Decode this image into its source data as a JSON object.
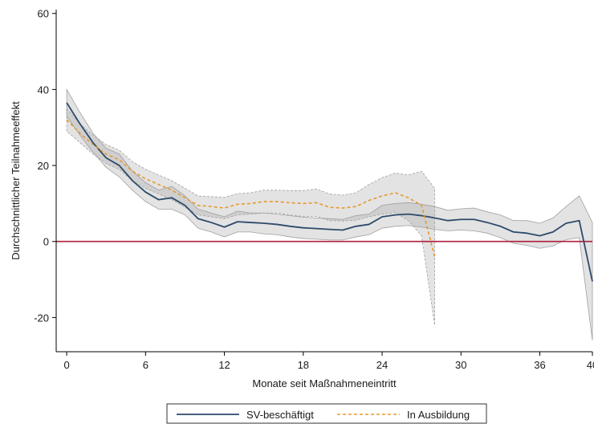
{
  "chart_data": {
    "type": "line",
    "xlabel": "Monate seit Maßnahmeneintritt",
    "ylabel": "Durchschnittlicher Teilnahmeeffekt",
    "xlim": [
      -0.8,
      40
    ],
    "ylim": [
      -29,
      61
    ],
    "xticks": [
      0,
      6,
      12,
      18,
      24,
      30,
      36,
      40
    ],
    "yticks": [
      -20,
      0,
      20,
      40,
      60
    ],
    "reference_line": {
      "y": 0,
      "color": "#b01c3c"
    },
    "grid": false,
    "legend_position": "bottom",
    "series": [
      {
        "name": "SV-beschäftigt",
        "color": "#2e4a6b",
        "style": "solid",
        "x": [
          0,
          1,
          2,
          3,
          4,
          5,
          6,
          7,
          8,
          9,
          10,
          11,
          12,
          13,
          14,
          15,
          16,
          17,
          18,
          19,
          20,
          21,
          22,
          23,
          24,
          25,
          26,
          27,
          28,
          29,
          30,
          31,
          32,
          33,
          34,
          35,
          36,
          37,
          38,
          39,
          40
        ],
        "y": [
          36.5,
          31,
          26,
          22,
          20,
          16,
          13,
          11,
          11.5,
          9.5,
          6,
          5,
          3.8,
          5.2,
          5,
          4.8,
          4.5,
          4,
          3.6,
          3.4,
          3.2,
          3,
          4,
          4.5,
          6.5,
          7,
          7.2,
          6.8,
          6.2,
          5.5,
          5.8,
          5.8,
          5,
          4,
          2.5,
          2.2,
          1.5,
          2.5,
          4.8,
          5.5,
          -10.5
        ],
        "ci_lower": [
          33,
          28,
          23.5,
          19.5,
          17,
          13.5,
          10.5,
          8.5,
          8.5,
          7,
          3.5,
          2.5,
          1.2,
          2.5,
          2.5,
          2,
          1.8,
          1.2,
          0.8,
          0.6,
          0.4,
          0.4,
          1.2,
          1.8,
          3.5,
          4,
          4.2,
          3.8,
          3.2,
          2.8,
          3,
          2.8,
          2.2,
          1,
          -0.5,
          -1,
          -1.8,
          -1.2,
          0.5,
          1,
          -26
        ],
        "ci_upper": [
          40,
          34,
          28.5,
          24.5,
          23,
          18.5,
          15.5,
          13.5,
          14.5,
          12,
          8.5,
          7.5,
          6.5,
          8,
          7.5,
          7.5,
          7.2,
          6.8,
          6.4,
          6.2,
          6,
          5.8,
          6.8,
          7.2,
          9.5,
          10,
          10.2,
          9.8,
          9.2,
          8.2,
          8.6,
          8.8,
          7.8,
          7,
          5.5,
          5.5,
          4.8,
          6.2,
          9.2,
          12,
          5
        ]
      },
      {
        "name": "In Ausbildung",
        "color": "#e69a2e",
        "style": "dashed",
        "x": [
          0,
          1,
          2,
          3,
          4,
          5,
          6,
          7,
          8,
          9,
          10,
          11,
          12,
          13,
          14,
          15,
          16,
          17,
          18,
          19,
          20,
          21,
          22,
          23,
          24,
          25,
          26,
          27,
          28
        ],
        "y": [
          32,
          28.5,
          25.5,
          23,
          21.5,
          18.5,
          16.5,
          15,
          13.5,
          11.5,
          9.5,
          9.2,
          8.8,
          9.8,
          10,
          10.5,
          10.5,
          10.2,
          10,
          10.2,
          9,
          8.8,
          9.2,
          10.8,
          12,
          12.8,
          11.5,
          9.5,
          -4
        ],
        "ci_lower": [
          29,
          26,
          23,
          20.5,
          19,
          16,
          14,
          12.5,
          11,
          9,
          7,
          6.5,
          6,
          7,
          7.2,
          7.5,
          7.5,
          7,
          6.6,
          6.6,
          5.5,
          5.4,
          5.6,
          6.5,
          7.2,
          7.6,
          5.5,
          1.5,
          -22
        ],
        "ci_upper": [
          35,
          31,
          28,
          25.5,
          24,
          21,
          19,
          17.5,
          16,
          14,
          12,
          11.8,
          11.6,
          12.6,
          12.8,
          13.5,
          13.5,
          13.4,
          13.4,
          13.8,
          12.5,
          12.2,
          12.8,
          15,
          16.8,
          18,
          17.5,
          18.5,
          14
        ]
      }
    ]
  }
}
